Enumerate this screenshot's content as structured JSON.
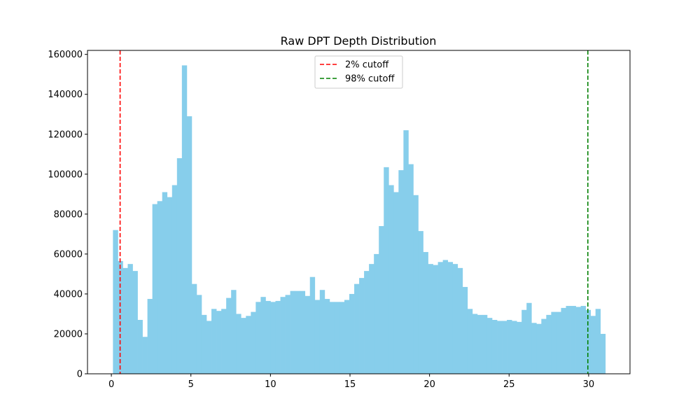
{
  "chart_data": {
    "type": "bar",
    "title": "Raw DPT Depth Distribution",
    "xlabel": "",
    "ylabel": "",
    "xlim": [
      -1.5,
      32.6
    ],
    "ylim": [
      0,
      162000
    ],
    "xticks": [
      0,
      5,
      10,
      15,
      20,
      25,
      30
    ],
    "yticks": [
      0,
      20000,
      40000,
      60000,
      80000,
      100000,
      120000,
      140000,
      160000
    ],
    "grid": false,
    "legend_position": "top-center",
    "bar_color": "#87ceeb",
    "bins": {
      "start": 0.1,
      "end": 31.05,
      "counts": [
        72000,
        56500,
        53000,
        55000,
        51500,
        27000,
        18500,
        37500,
        85000,
        86500,
        91000,
        88500,
        94500,
        108000,
        154500,
        129000,
        45000,
        39500,
        29500,
        26500,
        32500,
        31500,
        32500,
        38000,
        42000,
        30000,
        28000,
        29000,
        31000,
        36000,
        38500,
        36500,
        36000,
        36500,
        38500,
        39500,
        41500,
        41500,
        41500,
        39000,
        48500,
        37000,
        42000,
        37500,
        36000,
        36000,
        36000,
        37000,
        40000,
        45000,
        48000,
        51500,
        55000,
        60000,
        74000,
        103500,
        94500,
        91000,
        102000,
        122000,
        105000,
        89500,
        71500,
        61000,
        55000,
        54500,
        56000,
        57000,
        56000,
        55000,
        53000,
        43500,
        32500,
        30000,
        29500,
        29500,
        28000,
        27000,
        26500,
        26500,
        27000,
        26500,
        26000,
        32000,
        35500,
        25500,
        25000,
        27500,
        29500,
        31000,
        31000,
        33000,
        34000,
        34000,
        33500,
        34000,
        32000,
        29000,
        32500,
        20000
      ]
    },
    "cutoffs": [
      {
        "name": "2% cutoff",
        "x": 0.55,
        "color": "#ff0000"
      },
      {
        "name": "98% cutoff",
        "x": 29.95,
        "color": "#008000"
      }
    ]
  }
}
